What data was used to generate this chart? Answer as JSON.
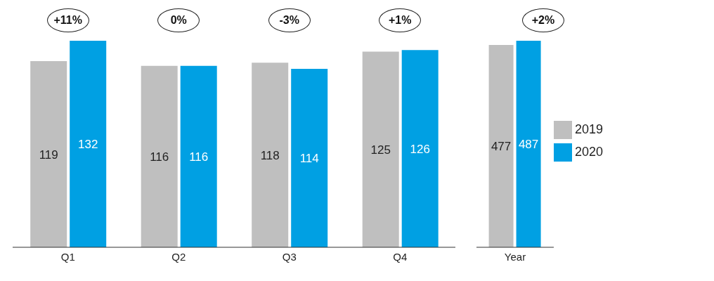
{
  "chart_data": [
    {
      "type": "bar",
      "categories": [
        "Q1",
        "Q2",
        "Q3",
        "Q4"
      ],
      "series": [
        {
          "color": "#bfbfbf",
          "values": [
            119,
            116,
            118,
            125
          ]
        },
        {
          "color": "#00a0e3",
          "values": [
            132,
            116,
            114,
            126
          ]
        }
      ],
      "data_labels": true,
      "legend": false,
      "annotations": [
        "+11%",
        "0%",
        "-3%",
        "+1%"
      ]
    },
    {
      "type": "bar",
      "categories": [
        "Year"
      ],
      "series": [
        {
          "name": "2019",
          "color": "#bfbfbf",
          "values": [
            477
          ]
        },
        {
          "name": "2020",
          "color": "#00a0e3",
          "values": [
            487
          ]
        }
      ],
      "data_labels": true,
      "legend": "right",
      "annotations": [
        "+2%"
      ]
    }
  ]
}
